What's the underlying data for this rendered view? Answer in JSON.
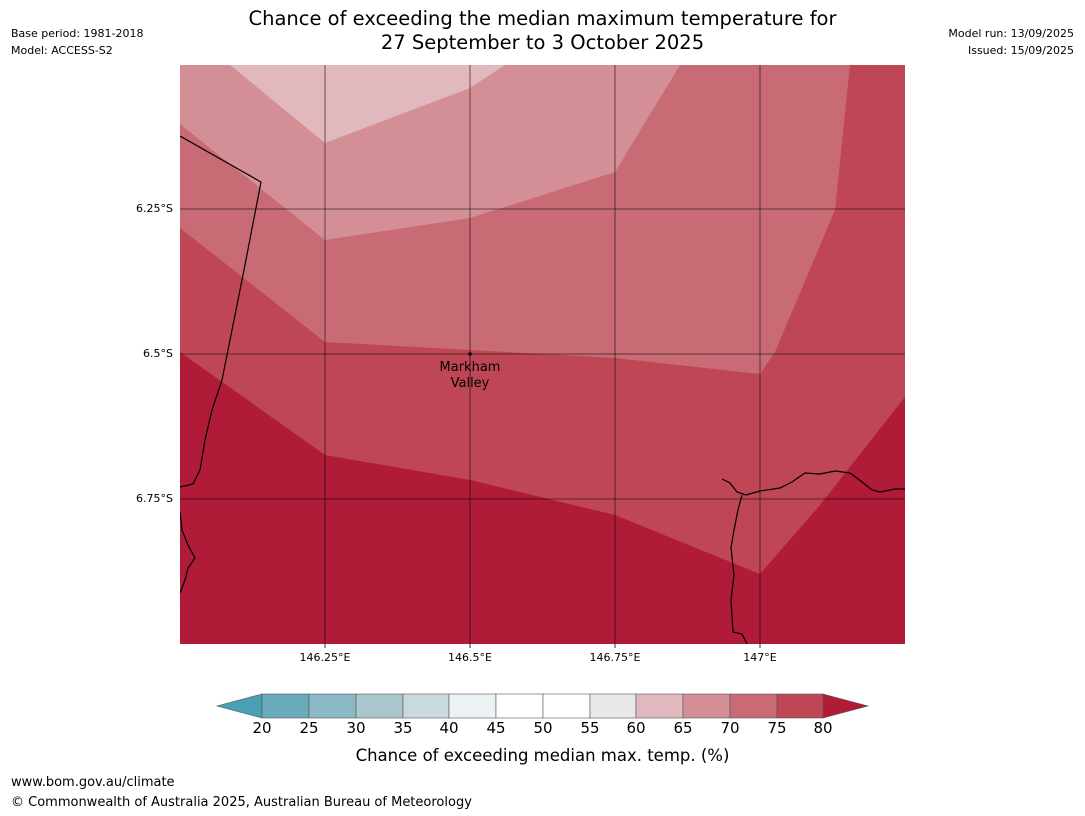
{
  "header": {
    "title_line1": "Chance of exceeding the median maximum temperature for",
    "title_line2": "27 September to 3 October 2025",
    "base_period": "Base period: 1981-2018",
    "model": "Model: ACCESS-S2",
    "model_run": "Model run: 13/09/2025",
    "issued": "Issued: 15/09/2025"
  },
  "map": {
    "lat_labels": [
      "6.25°S",
      "6.5°S",
      "6.75°S"
    ],
    "lon_labels": [
      "146.25°E",
      "146.5°E",
      "146.75°E",
      "147°E"
    ],
    "place": {
      "name_line1": "Markham",
      "name_line2": "Valley"
    }
  },
  "colorbar": {
    "ticks": [
      "20",
      "25",
      "30",
      "35",
      "40",
      "45",
      "50",
      "55",
      "60",
      "65",
      "70",
      "75",
      "80"
    ],
    "label": "Chance of exceeding median max. temp. (%)",
    "colors": {
      "below_20": "#4aa0b5",
      "20_25": "#6aabbb",
      "25_30": "#8bb8c5",
      "30_35": "#a8c6cc",
      "35_40": "#c8dade",
      "40_45": "#eaf2f3",
      "45_50": "#ffffff",
      "50_55": "#ffffff",
      "55_60": "#e8e8e8",
      "60_65": "#e0b8bd",
      "65_70": "#d48f96",
      "70_75": "#c96b75",
      "75_80": "#bf4655",
      "above_80": "#b01c38"
    }
  },
  "footer": {
    "url": "www.bom.gov.au/climate",
    "copyright": "© Commonwealth of Australia 2025, Australian Bureau of Meteorology"
  }
}
